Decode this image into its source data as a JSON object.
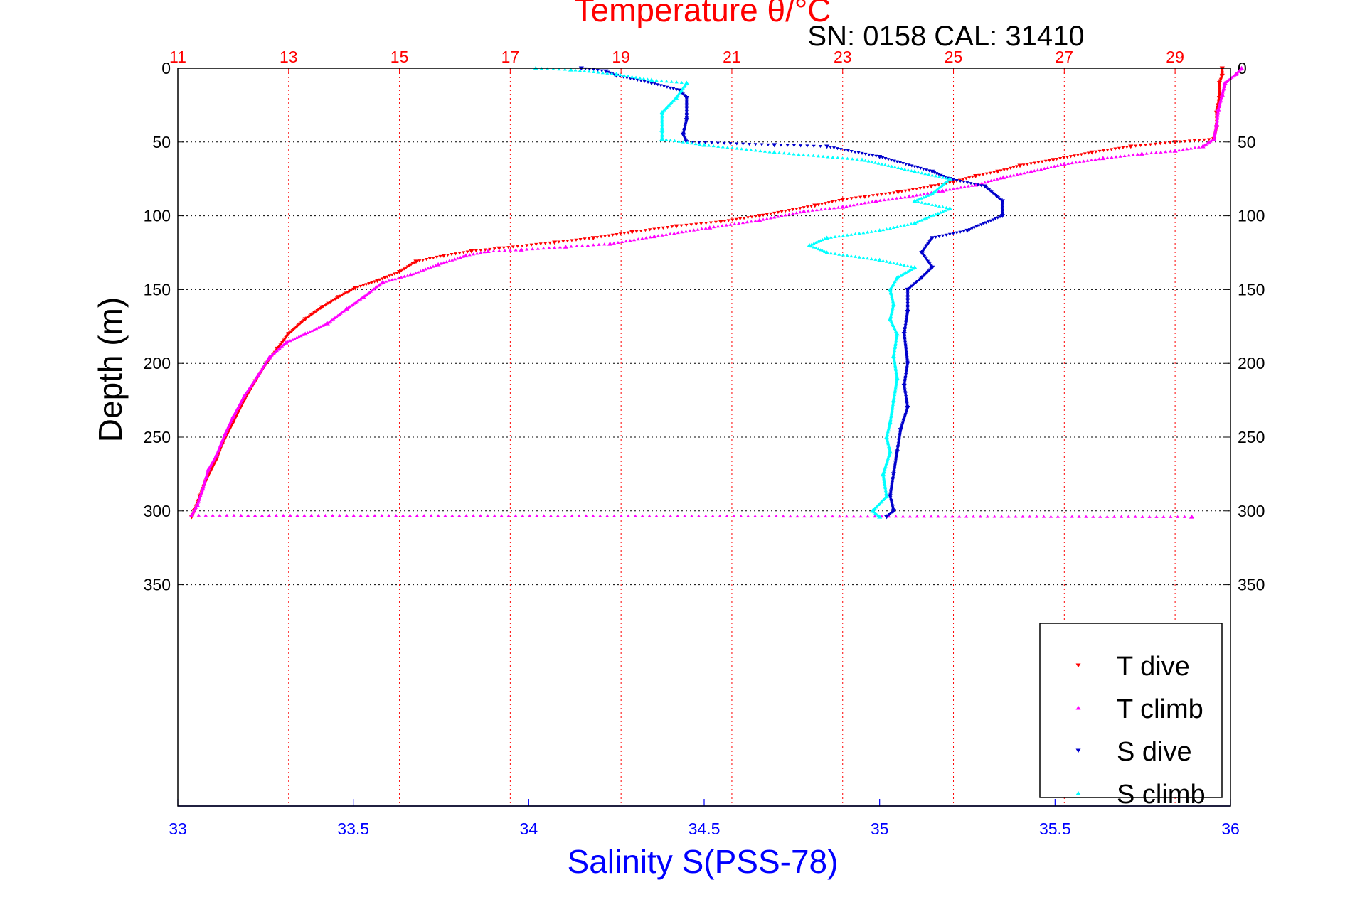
{
  "colors": {
    "temperature_axis": "#ff0000",
    "salinity_axis": "#0000ff",
    "t_dive": "#ff0000",
    "t_climb": "#ff00ff",
    "s_dive": "#0000cc",
    "s_climb": "#00ffff",
    "frame": "#000000"
  },
  "chart_data": {
    "type": "scatter",
    "title": "Temperature θ/°C",
    "subtitle": "SN: 0158  CAL: 31410",
    "xlabel_top": "Temperature θ/°C",
    "xlabel_bottom": "Salinity S(PSS-78)",
    "ylabel": "Depth (m)",
    "temperature_axis": {
      "range": [
        11,
        30
      ],
      "ticks": [
        11,
        13,
        15,
        17,
        19,
        21,
        23,
        25,
        27,
        29
      ],
      "grid": true
    },
    "salinity_axis": {
      "range": [
        33,
        36
      ],
      "ticks": [
        33,
        33.5,
        34,
        34.5,
        35,
        35.5,
        36
      ],
      "tick_labels": [
        "33",
        "33.5",
        "34",
        "34.5",
        "35",
        "35.5",
        "36"
      ]
    },
    "depth_axis": {
      "range": [
        0,
        500
      ],
      "reversed": true,
      "ticks": [
        0,
        50,
        100,
        150,
        200,
        250,
        300,
        350
      ],
      "grid": true
    },
    "legend": {
      "position": "bottom-right",
      "entries": [
        "T dive",
        "T climb",
        "S dive",
        "S climb"
      ]
    },
    "series": [
      {
        "name": "T dive",
        "axis": "temperature",
        "marker": "triangle-down",
        "points": [
          [
            29.85,
            0
          ],
          [
            29.85,
            5
          ],
          [
            29.8,
            10
          ],
          [
            29.8,
            20
          ],
          [
            29.75,
            30
          ],
          [
            29.75,
            40
          ],
          [
            29.7,
            48
          ],
          [
            29.0,
            50
          ],
          [
            28.2,
            53
          ],
          [
            27.5,
            57
          ],
          [
            26.8,
            62
          ],
          [
            26.2,
            66
          ],
          [
            25.8,
            70
          ],
          [
            25.4,
            73
          ],
          [
            25.0,
            77
          ],
          [
            24.6,
            80
          ],
          [
            24.0,
            84
          ],
          [
            23.4,
            87
          ],
          [
            23.0,
            89
          ],
          [
            22.5,
            93
          ],
          [
            21.5,
            100
          ],
          [
            20.8,
            104
          ],
          [
            20.0,
            107
          ],
          [
            19.2,
            111
          ],
          [
            18.5,
            115
          ],
          [
            17.8,
            118
          ],
          [
            16.8,
            122
          ],
          [
            16.3,
            124
          ],
          [
            15.8,
            127
          ],
          [
            15.3,
            131
          ],
          [
            15.0,
            138
          ],
          [
            14.6,
            144
          ],
          [
            14.2,
            149
          ],
          [
            13.9,
            155
          ],
          [
            13.6,
            162
          ],
          [
            13.3,
            170
          ],
          [
            13.0,
            180
          ],
          [
            12.8,
            190
          ],
          [
            12.6,
            200
          ],
          [
            12.4,
            212
          ],
          [
            12.2,
            225
          ],
          [
            12.0,
            240
          ],
          [
            11.8,
            255
          ],
          [
            11.7,
            265
          ],
          [
            11.5,
            280
          ],
          [
            11.4,
            290
          ],
          [
            11.3,
            300
          ],
          [
            11.25,
            304
          ]
        ]
      },
      {
        "name": "T climb",
        "axis": "temperature",
        "marker": "triangle-up",
        "points": [
          [
            29.3,
            304
          ],
          [
            11.25,
            303
          ],
          [
            11.35,
            296
          ],
          [
            11.45,
            285
          ],
          [
            11.55,
            272
          ],
          [
            11.7,
            262
          ],
          [
            11.85,
            248
          ],
          [
            12.0,
            236
          ],
          [
            12.2,
            222
          ],
          [
            12.45,
            208
          ],
          [
            12.65,
            196
          ],
          [
            12.95,
            186
          ],
          [
            13.3,
            180
          ],
          [
            13.7,
            173
          ],
          [
            14.05,
            163
          ],
          [
            14.35,
            155
          ],
          [
            14.7,
            145
          ],
          [
            15.2,
            140
          ],
          [
            15.7,
            133
          ],
          [
            16.2,
            127
          ],
          [
            16.6,
            124
          ],
          [
            17.2,
            123
          ],
          [
            18.0,
            121
          ],
          [
            18.8,
            119
          ],
          [
            19.6,
            114
          ],
          [
            20.6,
            108
          ],
          [
            21.5,
            103
          ],
          [
            22.3,
            97
          ],
          [
            23.0,
            94
          ],
          [
            23.6,
            90
          ],
          [
            24.2,
            87
          ],
          [
            24.8,
            83
          ],
          [
            25.4,
            79
          ],
          [
            25.9,
            74
          ],
          [
            26.4,
            70
          ],
          [
            27.0,
            65
          ],
          [
            27.7,
            61
          ],
          [
            28.4,
            58
          ],
          [
            29.0,
            56
          ],
          [
            29.5,
            53
          ],
          [
            29.7,
            48
          ],
          [
            29.75,
            38
          ],
          [
            29.78,
            28
          ],
          [
            29.85,
            18
          ],
          [
            29.9,
            10
          ],
          [
            30.1,
            4
          ],
          [
            30.2,
            0
          ]
        ]
      },
      {
        "name": "S dive",
        "axis": "salinity",
        "marker": "triangle-down",
        "points": [
          [
            34.15,
            0
          ],
          [
            34.22,
            2
          ],
          [
            34.25,
            5
          ],
          [
            34.35,
            10
          ],
          [
            34.43,
            15
          ],
          [
            34.45,
            20
          ],
          [
            34.45,
            35
          ],
          [
            34.44,
            45
          ],
          [
            34.45,
            50
          ],
          [
            34.7,
            52
          ],
          [
            34.85,
            53
          ],
          [
            35.0,
            60
          ],
          [
            35.15,
            70
          ],
          [
            35.2,
            75
          ],
          [
            35.3,
            80
          ],
          [
            35.35,
            90
          ],
          [
            35.35,
            100
          ],
          [
            35.25,
            110
          ],
          [
            35.15,
            115
          ],
          [
            35.12,
            125
          ],
          [
            35.15,
            135
          ],
          [
            35.12,
            142
          ],
          [
            35.08,
            150
          ],
          [
            35.08,
            165
          ],
          [
            35.07,
            180
          ],
          [
            35.08,
            200
          ],
          [
            35.07,
            215
          ],
          [
            35.08,
            230
          ],
          [
            35.06,
            245
          ],
          [
            35.05,
            260
          ],
          [
            35.04,
            275
          ],
          [
            35.03,
            290
          ],
          [
            35.04,
            300
          ],
          [
            35.02,
            304
          ]
        ]
      },
      {
        "name": "S climb",
        "axis": "salinity",
        "marker": "triangle-up",
        "points": [
          [
            35.0,
            304
          ],
          [
            34.98,
            300
          ],
          [
            35.02,
            290
          ],
          [
            35.01,
            275
          ],
          [
            35.03,
            260
          ],
          [
            35.02,
            250
          ],
          [
            35.03,
            240
          ],
          [
            35.04,
            225
          ],
          [
            35.05,
            210
          ],
          [
            35.04,
            195
          ],
          [
            35.05,
            180
          ],
          [
            35.03,
            170
          ],
          [
            35.04,
            160
          ],
          [
            35.03,
            150
          ],
          [
            35.05,
            142
          ],
          [
            35.1,
            135
          ],
          [
            35.0,
            130
          ],
          [
            34.85,
            125
          ],
          [
            34.8,
            120
          ],
          [
            34.85,
            115
          ],
          [
            35.0,
            110
          ],
          [
            35.1,
            105
          ],
          [
            35.2,
            95
          ],
          [
            35.1,
            90
          ],
          [
            35.15,
            85
          ],
          [
            35.2,
            75
          ],
          [
            35.1,
            70
          ],
          [
            34.95,
            62
          ],
          [
            34.7,
            57
          ],
          [
            34.5,
            52
          ],
          [
            34.38,
            48
          ],
          [
            34.38,
            42
          ],
          [
            34.38,
            30
          ],
          [
            34.42,
            20
          ],
          [
            34.45,
            10
          ],
          [
            34.35,
            8
          ],
          [
            34.25,
            4
          ],
          [
            34.12,
            1
          ],
          [
            34.02,
            0
          ]
        ]
      }
    ]
  }
}
